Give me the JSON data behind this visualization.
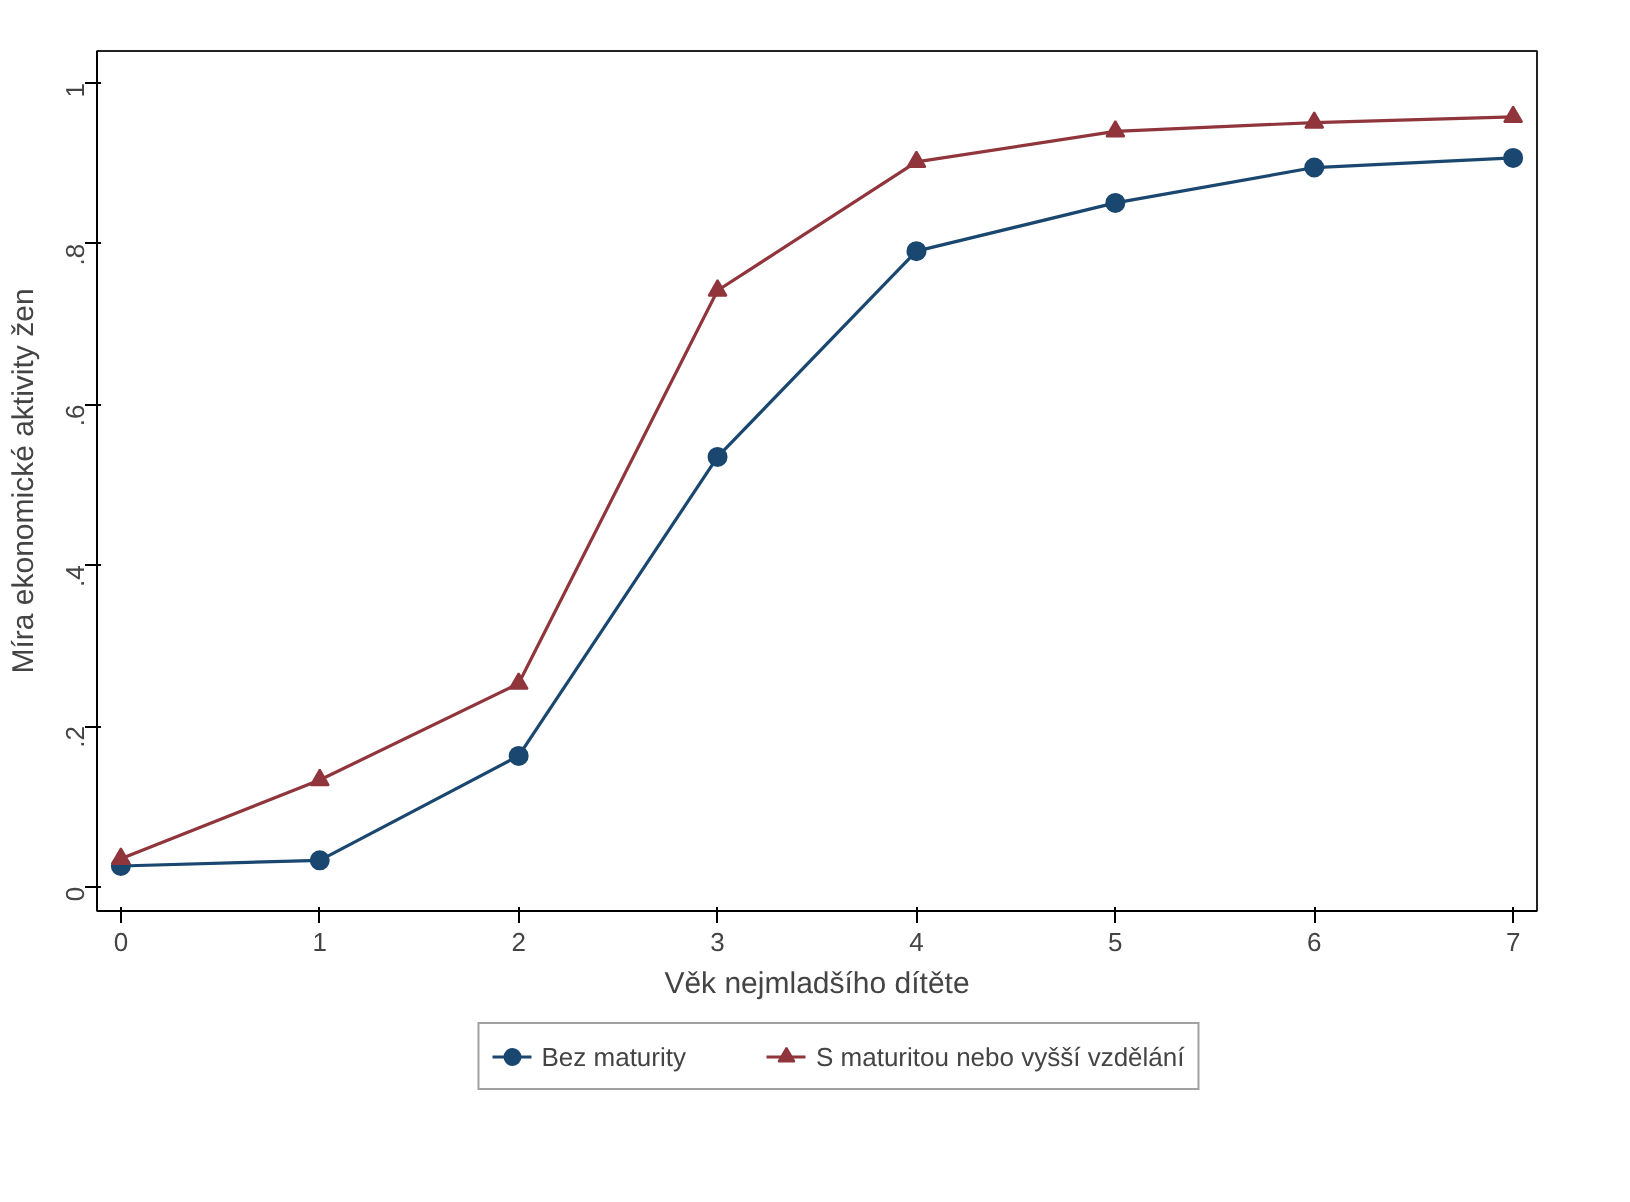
{
  "chart_data": {
    "type": "line",
    "xlabel": "Věk nejmladšího dítěte",
    "ylabel": "Míra ekonomické aktivity žen",
    "x": [
      0,
      1,
      2,
      3,
      4,
      5,
      6,
      7
    ],
    "series": [
      {
        "name": "Bez maturity",
        "color": "#1a476f",
        "marker": "circle",
        "values": [
          0.026,
          0.033,
          0.163,
          0.535,
          0.791,
          0.851,
          0.895,
          0.907
        ]
      },
      {
        "name": "S maturitou nebo vyšší vzdělání",
        "color": "#90353b",
        "marker": "triangle",
        "values": [
          0.035,
          0.133,
          0.253,
          0.742,
          0.902,
          0.94,
          0.951,
          0.958
        ]
      }
    ],
    "xlim": [
      -0.12,
      7.12
    ],
    "ylim": [
      -0.03,
      1.04
    ],
    "xticks": [
      0,
      1,
      2,
      3,
      4,
      5,
      6,
      7
    ],
    "yticks": [
      {
        "value": 0,
        "label": "0"
      },
      {
        "value": 0.2,
        "label": ".2"
      },
      {
        "value": 0.4,
        "label": ".4"
      },
      {
        "value": 0.6,
        "label": ".6"
      },
      {
        "value": 0.8,
        "label": ".8"
      },
      {
        "value": 1,
        "label": "1"
      }
    ],
    "grid": false,
    "legend": "bottom",
    "line_style": "solid"
  }
}
